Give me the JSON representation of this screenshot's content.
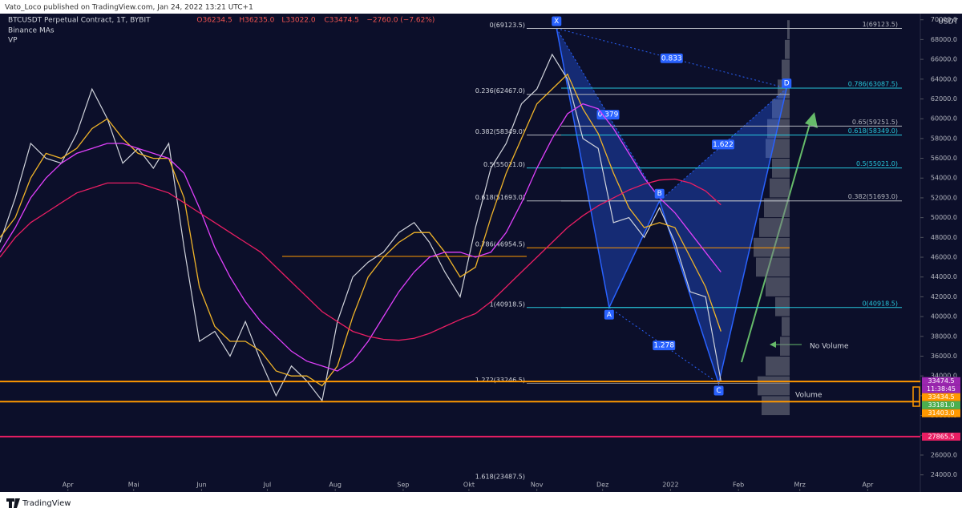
{
  "header": {
    "publisher": "Vato_Loco published on TradingView.com, Jan 24, 2022 13:21 UTC+1"
  },
  "footer": {
    "brand": "TradingView"
  },
  "chart_data": {
    "type": "line",
    "title": "BTCUSDT Perpetual Contract, 1T, BYBIT",
    "quote": [
      "O36234.5",
      "H36235.0",
      "L33022.0",
      "C33474.5",
      "−2760.0 (−7.62%)"
    ],
    "indicators": [
      "Binance MAs",
      "VP"
    ],
    "unit": "USDT",
    "x": [
      59,
      66,
      73,
      80,
      87,
      94,
      101,
      108,
      115,
      122,
      129,
      136,
      143,
      150,
      157,
      164,
      171,
      178,
      185,
      192,
      199,
      206,
      213,
      220,
      227,
      234,
      241,
      248,
      255,
      262,
      269,
      276,
      283,
      290,
      297,
      304,
      311,
      318,
      325,
      332,
      339,
      346,
      353,
      360,
      367,
      374,
      381,
      388
    ],
    "series": [
      {
        "color": "#d1d4dc",
        "values": [
          47500,
          52000,
          57500,
          56000,
          55500,
          58500,
          63000,
          60000,
          55500,
          57000,
          55000,
          57500,
          47000,
          37500,
          38500,
          36000,
          39500,
          35500,
          32000,
          35000,
          33500,
          31500,
          39500,
          44000,
          45500,
          46500,
          48500,
          49500,
          47500,
          44500,
          42000,
          49000,
          55000,
          57500,
          61500,
          63000,
          66500,
          64000,
          58000,
          57000,
          49500,
          50000,
          48000,
          51000,
          47500,
          42500,
          42000,
          33474.5
        ]
      },
      {
        "color": "#f0b429",
        "values": [
          48000,
          50000,
          54000,
          56500,
          56000,
          57000,
          59000,
          60000,
          58000,
          56500,
          56000,
          56000,
          52000,
          43000,
          39000,
          37500,
          37500,
          36500,
          34500,
          34000,
          34000,
          33000,
          35000,
          40000,
          44000,
          46000,
          47500,
          48500,
          48500,
          46500,
          44000,
          45000,
          50000,
          54500,
          58000,
          61500,
          63000,
          64500,
          61000,
          58500,
          54500,
          51000,
          49000,
          49500,
          49000,
          46000,
          43000,
          38500
        ]
      },
      {
        "color": "#e040fb",
        "values": [
          46500,
          49000,
          52000,
          54000,
          55500,
          56500,
          57000,
          57500,
          57500,
          57000,
          56500,
          56000,
          54500,
          51000,
          47000,
          44000,
          41500,
          39500,
          38000,
          36500,
          35500,
          35000,
          34500,
          35500,
          37500,
          40000,
          42500,
          44500,
          46000,
          46500,
          46500,
          46000,
          46500,
          48500,
          51500,
          55000,
          58000,
          60500,
          61500,
          61000,
          59000,
          56500,
          54000,
          52000,
          50500,
          48500,
          46500,
          44500
        ]
      },
      {
        "color": "#e91e63",
        "values": [
          46000,
          48000,
          49500,
          50500,
          51500,
          52500,
          53000,
          53500,
          53500,
          53500,
          53000,
          52500,
          51500,
          50500,
          49500,
          48500,
          47500,
          46500,
          45000,
          43500,
          42000,
          40500,
          39500,
          38500,
          38000,
          37700,
          37600,
          37800,
          38300,
          39000,
          39700,
          40300,
          41500,
          43000,
          44500,
          46000,
          47500,
          49000,
          50200,
          51200,
          52000,
          52800,
          53400,
          53800,
          53900,
          53500,
          52700,
          51300
        ]
      }
    ],
    "xlim": [
      59,
      479
    ],
    "xticks": [
      {
        "value": 90,
        "label": "Apr"
      },
      {
        "value": 120,
        "label": "Mai"
      },
      {
        "value": 151,
        "label": "Jun"
      },
      {
        "value": 181,
        "label": "Jul"
      },
      {
        "value": 212,
        "label": "Aug"
      },
      {
        "value": 243,
        "label": "Sep"
      },
      {
        "value": 273,
        "label": "Okt"
      },
      {
        "value": 304,
        "label": "Nov"
      },
      {
        "value": 334,
        "label": "Dez"
      },
      {
        "value": 365,
        "label": "2022"
      },
      {
        "value": 396,
        "label": "Feb"
      },
      {
        "value": 424,
        "label": "Mrz"
      },
      {
        "value": 455,
        "label": "Apr"
      }
    ],
    "ylim": [
      23000,
      72000
    ],
    "yticks": [
      {
        "value": 24000,
        "label": "24000.0"
      },
      {
        "value": 26000,
        "label": "26000.0"
      },
      {
        "value": 28000,
        "label": "28000.0"
      },
      {
        "value": 30000,
        "label": "30000.0"
      },
      {
        "value": 32000,
        "label": "32000.0"
      },
      {
        "value": 34000,
        "label": "34000.0"
      },
      {
        "value": 36000,
        "label": "36000.0"
      },
      {
        "value": 38000,
        "label": "38000.0"
      },
      {
        "value": 40000,
        "label": "40000.0"
      },
      {
        "value": 42000,
        "label": "42000.0"
      },
      {
        "value": 44000,
        "label": "44000.0"
      },
      {
        "value": 46000,
        "label": "46000.0"
      },
      {
        "value": 48000,
        "label": "48000.0"
      },
      {
        "value": 50000,
        "label": "50000.0"
      },
      {
        "value": 52000,
        "label": "52000.0"
      },
      {
        "value": 54000,
        "label": "54000.0"
      },
      {
        "value": 56000,
        "label": "56000.0"
      },
      {
        "value": 58000,
        "label": "58000.0"
      },
      {
        "value": 60000,
        "label": "60000.0"
      },
      {
        "value": 62000,
        "label": "62000.0"
      },
      {
        "value": 64000,
        "label": "64000.0"
      },
      {
        "value": 66000,
        "label": "66000.0"
      },
      {
        "value": 68000,
        "label": "68000.0"
      },
      {
        "value": 70000,
        "label": "70000.0"
      }
    ],
    "grid": false,
    "fib_left": [
      {
        "value": 69123.5,
        "label": "0(69123.5)",
        "color": "#b2b5be"
      },
      {
        "value": 62467.0,
        "label": "0.236(62467.0)",
        "color": "#b2b5be"
      },
      {
        "value": 58349.0,
        "label": "0.382(58349.0)",
        "color": "#b2b5be"
      },
      {
        "value": 55021.0,
        "label": "0.5(55021.0)",
        "color": "#26c6da"
      },
      {
        "value": 51693.0,
        "label": "0.618(51693.0)",
        "color": "#b2b5be"
      },
      {
        "value": 46954.5,
        "label": "0.786(46954.5)",
        "color": "#ff9800"
      },
      {
        "value": 40918.5,
        "label": "1(40918.5)",
        "color": "#26c6da"
      },
      {
        "value": 33246.5,
        "label": "1.272(33246.5)",
        "color": "#787b86"
      },
      {
        "value": 23487.5,
        "label": "1.618(23487.5)",
        "color": "#0c0f2a"
      }
    ],
    "fib_right": [
      {
        "value": 69123.5,
        "label": "1(69123.5)",
        "color": "#b2b5be"
      },
      {
        "value": 63087.5,
        "label": "0.786(63087.5)",
        "color": "#26c6da"
      },
      {
        "value": 59251.5,
        "label": "0.65(59251.5)",
        "color": "#b2b5be"
      },
      {
        "value": 58349.0,
        "label": "0.618(58349.0)",
        "color": "#26c6da"
      },
      {
        "value": 55021.0,
        "label": "0.5(55021.0)",
        "color": "#26c6da"
      },
      {
        "value": 51693.0,
        "label": "0.382(51693.0)",
        "color": "#b2b5be"
      },
      {
        "value": 40918.5,
        "label": "0(40918.5)",
        "color": "#26c6da"
      }
    ],
    "harmonic": {
      "color": "#2962ff",
      "points": [
        {
          "name": "X",
          "x": 313,
          "y": 69123.5
        },
        {
          "name": "A",
          "x": 337,
          "y": 40918.5
        },
        {
          "name": "B",
          "x": 360,
          "y": 51693.0
        },
        {
          "name": "C",
          "x": 387,
          "y": 33246.5
        },
        {
          "name": "D",
          "x": 418,
          "y": 63087.5
        }
      ],
      "ratios": [
        {
          "label": "0.833",
          "from": "X",
          "to": "D"
        },
        {
          "label": "0.379",
          "from": "X",
          "to": "B"
        },
        {
          "label": "1.622",
          "from": "B",
          "to": "D"
        },
        {
          "label": "1.278",
          "from": "A",
          "to": "C"
        }
      ]
    },
    "price_tags": [
      {
        "value": 33474.5,
        "label": "33474.5",
        "color": "#9c27b0",
        "sub": "11:38:45"
      },
      {
        "value": 33434.5,
        "label": "33434.5",
        "color": "#ff9800"
      },
      {
        "value": 33181.0,
        "label": "33181.0",
        "color": "#4caf50"
      },
      {
        "value": 31403.0,
        "label": "31403.0",
        "color": "#ff9800"
      },
      {
        "value": 27865.5,
        "label": "27865.5",
        "color": "#e91e63"
      }
    ],
    "volume_profile": {
      "color": "#787b86",
      "bins": [
        30000,
        32000,
        34000,
        36000,
        38000,
        40000,
        42000,
        44000,
        46000,
        48000,
        50000,
        52000,
        54000,
        56000,
        58000,
        60000,
        62000,
        64000,
        66000,
        68000,
        70000
      ],
      "values": [
        35,
        40,
        30,
        12,
        10,
        18,
        30,
        42,
        45,
        38,
        32,
        25,
        22,
        30,
        28,
        22,
        15,
        10,
        6,
        3
      ]
    },
    "annotations": [
      "No Volume",
      "Volume"
    ]
  }
}
